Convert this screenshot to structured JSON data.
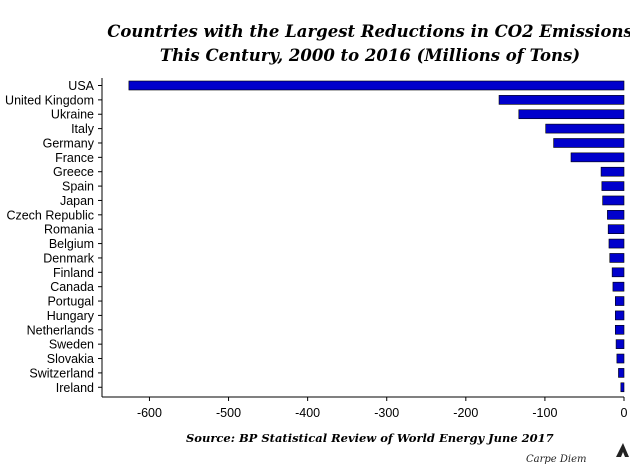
{
  "chart_data": {
    "type": "bar",
    "orientation": "horizontal",
    "title": "Countries with the Largest Reductions in CO2 Emissions This Century, 2000 to 2016 (Millions of Tons)",
    "title_lines": [
      "Countries with the Largest Reductions in CO2 Emissions",
      "This Century, 2000 to 2016 (Millions of Tons)"
    ],
    "categories": [
      "USA",
      "United Kingdom",
      "Ukraine",
      "Italy",
      "Germany",
      "France",
      "Greece",
      "Spain",
      "Japan",
      "Czech Republic",
      "Romania",
      "Belgium",
      "Denmark",
      "Finland",
      "Canada",
      "Portugal",
      "Hungary",
      "Netherlands",
      "Sweden",
      "Slovakia",
      "Switzerland",
      "Ireland"
    ],
    "values": [
      -626,
      -158,
      -133,
      -99,
      -89,
      -67,
      -29,
      -28,
      -27,
      -21,
      -20,
      -19,
      -18,
      -15,
      -14,
      -11,
      -11,
      -11,
      -10,
      -9,
      -7,
      -4
    ],
    "xlim": [
      -660,
      0
    ],
    "xticks": [
      -600,
      -500,
      -400,
      -300,
      -200,
      -100,
      0
    ],
    "xlabel": "",
    "ylabel": "",
    "bar_color": "#0000cc",
    "grid": false,
    "legend": "none",
    "source": "Source: BP Statistical Review of World Energy June 2017",
    "watermark": "Carpe Diem"
  }
}
